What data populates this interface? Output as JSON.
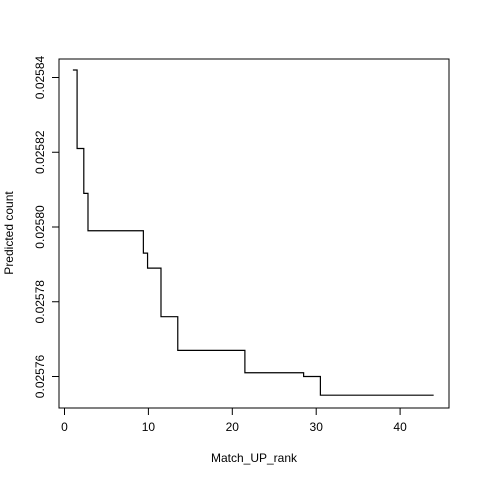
{
  "chart_data": {
    "type": "line",
    "step": true,
    "title": "",
    "xlabel": "Match_UP_rank",
    "ylabel": "Predicted count",
    "xlim": [
      1,
      44
    ],
    "ylim": [
      0.025755,
      0.025842
    ],
    "xticks": [
      0,
      10,
      20,
      30,
      40
    ],
    "xtick_labels": [
      "0",
      "10",
      "20",
      "30",
      "40"
    ],
    "yticks": [
      0.02576,
      0.02578,
      0.0258,
      0.02582,
      0.02584
    ],
    "ytick_labels": [
      "0.02576",
      "0.02578",
      "0.02580",
      "0.02582",
      "0.02584"
    ],
    "grid": false,
    "line_color": "#000000",
    "series": [
      {
        "x": [
          1,
          1.5,
          1.5,
          2.3,
          2.3,
          2.8,
          2.8,
          9.4,
          9.4,
          9.9,
          9.9,
          10.5,
          10.5,
          11.5,
          11.5,
          13.5,
          13.5,
          21.5,
          21.5,
          28.5,
          28.5,
          30.5,
          30.5,
          44
        ],
        "y": [
          0.025842,
          0.025842,
          0.025821,
          0.025821,
          0.025809,
          0.025809,
          0.025799,
          0.025799,
          0.025793,
          0.025793,
          0.025789,
          0.025789,
          0.025789,
          0.025789,
          0.025776,
          0.025776,
          0.025767,
          0.025767,
          0.025761,
          0.025761,
          0.02576,
          0.02576,
          0.025755,
          0.025755
        ]
      }
    ]
  }
}
